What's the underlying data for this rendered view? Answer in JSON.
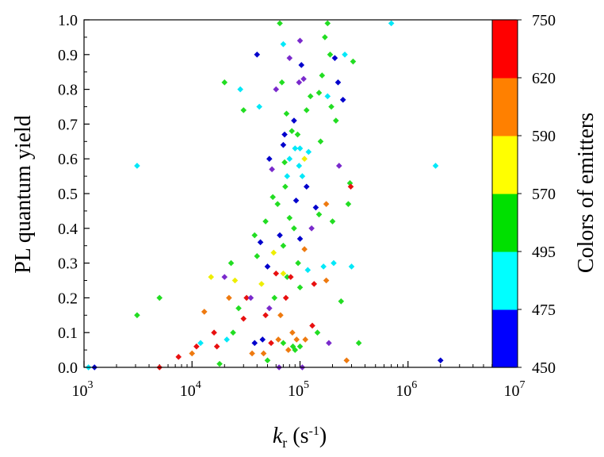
{
  "chart_data": {
    "type": "scatter",
    "xlabel": {
      "main": "k",
      "sub": "r",
      "unit": " (s",
      "sup": "-1",
      "close": ")"
    },
    "ylabel": "PL quantum yield",
    "x_scale": "log",
    "xlim": [
      1000,
      10000000
    ],
    "ylim": [
      0,
      1
    ],
    "x_ticks": [
      {
        "value": 1000,
        "base": "10",
        "exp": "3"
      },
      {
        "value": 10000,
        "base": "10",
        "exp": "4"
      },
      {
        "value": 100000,
        "base": "10",
        "exp": "5"
      },
      {
        "value": 1000000,
        "base": "10",
        "exp": "6"
      },
      {
        "value": 10000000,
        "base": "10",
        "exp": "7"
      }
    ],
    "y_ticks": [
      "0.0",
      "0.1",
      "0.2",
      "0.3",
      "0.4",
      "0.5",
      "0.6",
      "0.7",
      "0.8",
      "0.9",
      "1.0"
    ],
    "grid": false,
    "legend": "none",
    "colorbar": {
      "title": "Colors of emitters",
      "tick_labels": [
        "450",
        "475",
        "495",
        "570",
        "590",
        "620",
        "750"
      ],
      "bands": [
        {
          "from": "450",
          "to": "475",
          "color": "#0000ff"
        },
        {
          "from": "475",
          "to": "495",
          "color": "#00ffff"
        },
        {
          "from": "495",
          "to": "570",
          "color": "#00e000"
        },
        {
          "from": "570",
          "to": "590",
          "color": "#ffff00"
        },
        {
          "from": "590",
          "to": "620",
          "color": "#ff8000"
        },
        {
          "from": "620",
          "to": "750",
          "color": "#ff0000"
        }
      ]
    },
    "marker": "diamond",
    "points": [
      {
        "x": 1100,
        "y": 0.0,
        "c": "cyan"
      },
      {
        "x": 1250,
        "y": 0.0,
        "c": "blue"
      },
      {
        "x": 3100,
        "y": 0.58,
        "c": "cyan"
      },
      {
        "x": 3100,
        "y": 0.15,
        "c": "green"
      },
      {
        "x": 5000,
        "y": 0.2,
        "c": "green"
      },
      {
        "x": 5000,
        "y": 0.0,
        "c": "red"
      },
      {
        "x": 7500,
        "y": 0.03,
        "c": "red"
      },
      {
        "x": 10000,
        "y": 0.04,
        "c": "orange"
      },
      {
        "x": 11000,
        "y": 0.06,
        "c": "red"
      },
      {
        "x": 12000,
        "y": 0.07,
        "c": "cyan"
      },
      {
        "x": 13000,
        "y": 0.16,
        "c": "orange"
      },
      {
        "x": 15000,
        "y": 0.26,
        "c": "yellow"
      },
      {
        "x": 16000,
        "y": 0.1,
        "c": "red"
      },
      {
        "x": 17000,
        "y": 0.06,
        "c": "red"
      },
      {
        "x": 18000,
        "y": 0.01,
        "c": "green"
      },
      {
        "x": 20000,
        "y": 0.82,
        "c": "green"
      },
      {
        "x": 20000,
        "y": 0.26,
        "c": "purple"
      },
      {
        "x": 21000,
        "y": 0.08,
        "c": "cyan"
      },
      {
        "x": 22000,
        "y": 0.2,
        "c": "orange"
      },
      {
        "x": 23000,
        "y": 0.3,
        "c": "green"
      },
      {
        "x": 24000,
        "y": 0.1,
        "c": "green"
      },
      {
        "x": 25000,
        "y": 0.25,
        "c": "yellow"
      },
      {
        "x": 27000,
        "y": 0.17,
        "c": "green"
      },
      {
        "x": 28000,
        "y": 0.8,
        "c": "cyan"
      },
      {
        "x": 30000,
        "y": 0.74,
        "c": "green"
      },
      {
        "x": 30000,
        "y": 0.14,
        "c": "red"
      },
      {
        "x": 32000,
        "y": 0.2,
        "c": "red"
      },
      {
        "x": 35000,
        "y": 0.2,
        "c": "purple"
      },
      {
        "x": 36000,
        "y": 0.04,
        "c": "orange"
      },
      {
        "x": 38000,
        "y": 0.38,
        "c": "green"
      },
      {
        "x": 38000,
        "y": 0.07,
        "c": "blue"
      },
      {
        "x": 40000,
        "y": 0.9,
        "c": "blue"
      },
      {
        "x": 40000,
        "y": 0.32,
        "c": "green"
      },
      {
        "x": 42000,
        "y": 0.75,
        "c": "cyan"
      },
      {
        "x": 43000,
        "y": 0.36,
        "c": "blue"
      },
      {
        "x": 44000,
        "y": 0.24,
        "c": "yellow"
      },
      {
        "x": 45000,
        "y": 0.08,
        "c": "blue"
      },
      {
        "x": 46000,
        "y": 0.04,
        "c": "orange"
      },
      {
        "x": 48000,
        "y": 0.42,
        "c": "green"
      },
      {
        "x": 48000,
        "y": 0.15,
        "c": "red"
      },
      {
        "x": 50000,
        "y": 0.02,
        "c": "green"
      },
      {
        "x": 50000,
        "y": 0.29,
        "c": "blue"
      },
      {
        "x": 52000,
        "y": 0.6,
        "c": "blue"
      },
      {
        "x": 52000,
        "y": 0.17,
        "c": "purple"
      },
      {
        "x": 54000,
        "y": 0.07,
        "c": "red"
      },
      {
        "x": 55000,
        "y": 0.57,
        "c": "purple"
      },
      {
        "x": 56000,
        "y": 0.49,
        "c": "green"
      },
      {
        "x": 57000,
        "y": 0.33,
        "c": "yellow"
      },
      {
        "x": 58000,
        "y": 0.2,
        "c": "green"
      },
      {
        "x": 60000,
        "y": 0.8,
        "c": "purple"
      },
      {
        "x": 60000,
        "y": 0.27,
        "c": "red"
      },
      {
        "x": 62000,
        "y": 0.47,
        "c": "green"
      },
      {
        "x": 63000,
        "y": 0.08,
        "c": "orange"
      },
      {
        "x": 64000,
        "y": 0.0,
        "c": "purple"
      },
      {
        "x": 65000,
        "y": 0.99,
        "c": "green"
      },
      {
        "x": 65000,
        "y": 0.38,
        "c": "blue"
      },
      {
        "x": 66000,
        "y": 0.15,
        "c": "orange"
      },
      {
        "x": 68000,
        "y": 0.82,
        "c": "green"
      },
      {
        "x": 70000,
        "y": 0.93,
        "c": "cyan"
      },
      {
        "x": 70000,
        "y": 0.64,
        "c": "blue"
      },
      {
        "x": 70000,
        "y": 0.35,
        "c": "green"
      },
      {
        "x": 70000,
        "y": 0.27,
        "c": "yellow"
      },
      {
        "x": 70000,
        "y": 0.07,
        "c": "green"
      },
      {
        "x": 72000,
        "y": 0.67,
        "c": "blue"
      },
      {
        "x": 72000,
        "y": 0.59,
        "c": "green"
      },
      {
        "x": 73000,
        "y": 0.52,
        "c": "green"
      },
      {
        "x": 74000,
        "y": 0.2,
        "c": "red"
      },
      {
        "x": 75000,
        "y": 0.73,
        "c": "green"
      },
      {
        "x": 76000,
        "y": 0.55,
        "c": "cyan"
      },
      {
        "x": 76000,
        "y": 0.26,
        "c": "green"
      },
      {
        "x": 78000,
        "y": 0.05,
        "c": "orange"
      },
      {
        "x": 80000,
        "y": 0.89,
        "c": "purple"
      },
      {
        "x": 80000,
        "y": 0.6,
        "c": "cyan"
      },
      {
        "x": 80000,
        "y": 0.43,
        "c": "green"
      },
      {
        "x": 82000,
        "y": 0.26,
        "c": "red"
      },
      {
        "x": 84000,
        "y": 0.68,
        "c": "green"
      },
      {
        "x": 85000,
        "y": 0.1,
        "c": "orange"
      },
      {
        "x": 86000,
        "y": 0.06,
        "c": "green"
      },
      {
        "x": 88000,
        "y": 0.71,
        "c": "blue"
      },
      {
        "x": 88000,
        "y": 0.4,
        "c": "green"
      },
      {
        "x": 90000,
        "y": 0.63,
        "c": "cyan"
      },
      {
        "x": 90000,
        "y": 0.05,
        "c": "green"
      },
      {
        "x": 92000,
        "y": 0.48,
        "c": "blue"
      },
      {
        "x": 93000,
        "y": 0.08,
        "c": "orange"
      },
      {
        "x": 95000,
        "y": 0.67,
        "c": "green"
      },
      {
        "x": 96000,
        "y": 0.3,
        "c": "green"
      },
      {
        "x": 98000,
        "y": 0.82,
        "c": "purple"
      },
      {
        "x": 98000,
        "y": 0.58,
        "c": "cyan"
      },
      {
        "x": 100000,
        "y": 0.94,
        "c": "purple"
      },
      {
        "x": 100000,
        "y": 0.63,
        "c": "cyan"
      },
      {
        "x": 100000,
        "y": 0.37,
        "c": "blue"
      },
      {
        "x": 100000,
        "y": 0.23,
        "c": "green"
      },
      {
        "x": 100000,
        "y": 0.06,
        "c": "green"
      },
      {
        "x": 103000,
        "y": 0.87,
        "c": "blue"
      },
      {
        "x": 105000,
        "y": 0.55,
        "c": "cyan"
      },
      {
        "x": 105000,
        "y": 0.0,
        "c": "purple"
      },
      {
        "x": 108000,
        "y": 0.83,
        "c": "purple"
      },
      {
        "x": 110000,
        "y": 0.6,
        "c": "yellow"
      },
      {
        "x": 110000,
        "y": 0.34,
        "c": "orange"
      },
      {
        "x": 112000,
        "y": 0.08,
        "c": "orange"
      },
      {
        "x": 115000,
        "y": 0.74,
        "c": "green"
      },
      {
        "x": 115000,
        "y": 0.52,
        "c": "blue"
      },
      {
        "x": 118000,
        "y": 0.28,
        "c": "cyan"
      },
      {
        "x": 120000,
        "y": 0.62,
        "c": "cyan"
      },
      {
        "x": 125000,
        "y": 0.78,
        "c": "green"
      },
      {
        "x": 128000,
        "y": 0.4,
        "c": "purple"
      },
      {
        "x": 130000,
        "y": 0.12,
        "c": "red"
      },
      {
        "x": 135000,
        "y": 0.24,
        "c": "red"
      },
      {
        "x": 140000,
        "y": 0.46,
        "c": "blue"
      },
      {
        "x": 145000,
        "y": 0.1,
        "c": "green"
      },
      {
        "x": 150000,
        "y": 0.79,
        "c": "green"
      },
      {
        "x": 150000,
        "y": 0.44,
        "c": "green"
      },
      {
        "x": 155000,
        "y": 0.65,
        "c": "green"
      },
      {
        "x": 160000,
        "y": 0.84,
        "c": "green"
      },
      {
        "x": 165000,
        "y": 0.29,
        "c": "cyan"
      },
      {
        "x": 170000,
        "y": 0.95,
        "c": "green"
      },
      {
        "x": 175000,
        "y": 0.47,
        "c": "orange"
      },
      {
        "x": 175000,
        "y": 0.25,
        "c": "orange"
      },
      {
        "x": 180000,
        "y": 0.99,
        "c": "green"
      },
      {
        "x": 180000,
        "y": 0.78,
        "c": "cyan"
      },
      {
        "x": 185000,
        "y": 0.07,
        "c": "purple"
      },
      {
        "x": 190000,
        "y": 0.9,
        "c": "green"
      },
      {
        "x": 195000,
        "y": 0.75,
        "c": "green"
      },
      {
        "x": 200000,
        "y": 0.42,
        "c": "green"
      },
      {
        "x": 205000,
        "y": 0.3,
        "c": "cyan"
      },
      {
        "x": 210000,
        "y": 0.89,
        "c": "blue"
      },
      {
        "x": 215000,
        "y": 0.71,
        "c": "green"
      },
      {
        "x": 225000,
        "y": 0.82,
        "c": "blue"
      },
      {
        "x": 230000,
        "y": 0.58,
        "c": "purple"
      },
      {
        "x": 240000,
        "y": 0.19,
        "c": "green"
      },
      {
        "x": 250000,
        "y": 0.77,
        "c": "blue"
      },
      {
        "x": 260000,
        "y": 0.9,
        "c": "cyan"
      },
      {
        "x": 270000,
        "y": 0.02,
        "c": "orange"
      },
      {
        "x": 280000,
        "y": 0.47,
        "c": "green"
      },
      {
        "x": 290000,
        "y": 0.53,
        "c": "green"
      },
      {
        "x": 295000,
        "y": 0.52,
        "c": "red"
      },
      {
        "x": 300000,
        "y": 0.29,
        "c": "cyan"
      },
      {
        "x": 310000,
        "y": 0.88,
        "c": "green"
      },
      {
        "x": 350000,
        "y": 0.07,
        "c": "green"
      },
      {
        "x": 700000,
        "y": 0.99,
        "c": "cyan"
      },
      {
        "x": 1800000,
        "y": 0.58,
        "c": "cyan"
      },
      {
        "x": 2000000,
        "y": 0.02,
        "c": "blue"
      }
    ],
    "point_colors": {
      "blue": "#0000cc",
      "cyan": "#00e8f8",
      "green": "#22dd22",
      "yellow": "#eeee00",
      "orange": "#ee7a10",
      "red": "#e81010",
      "purple": "#7a2acc"
    }
  }
}
